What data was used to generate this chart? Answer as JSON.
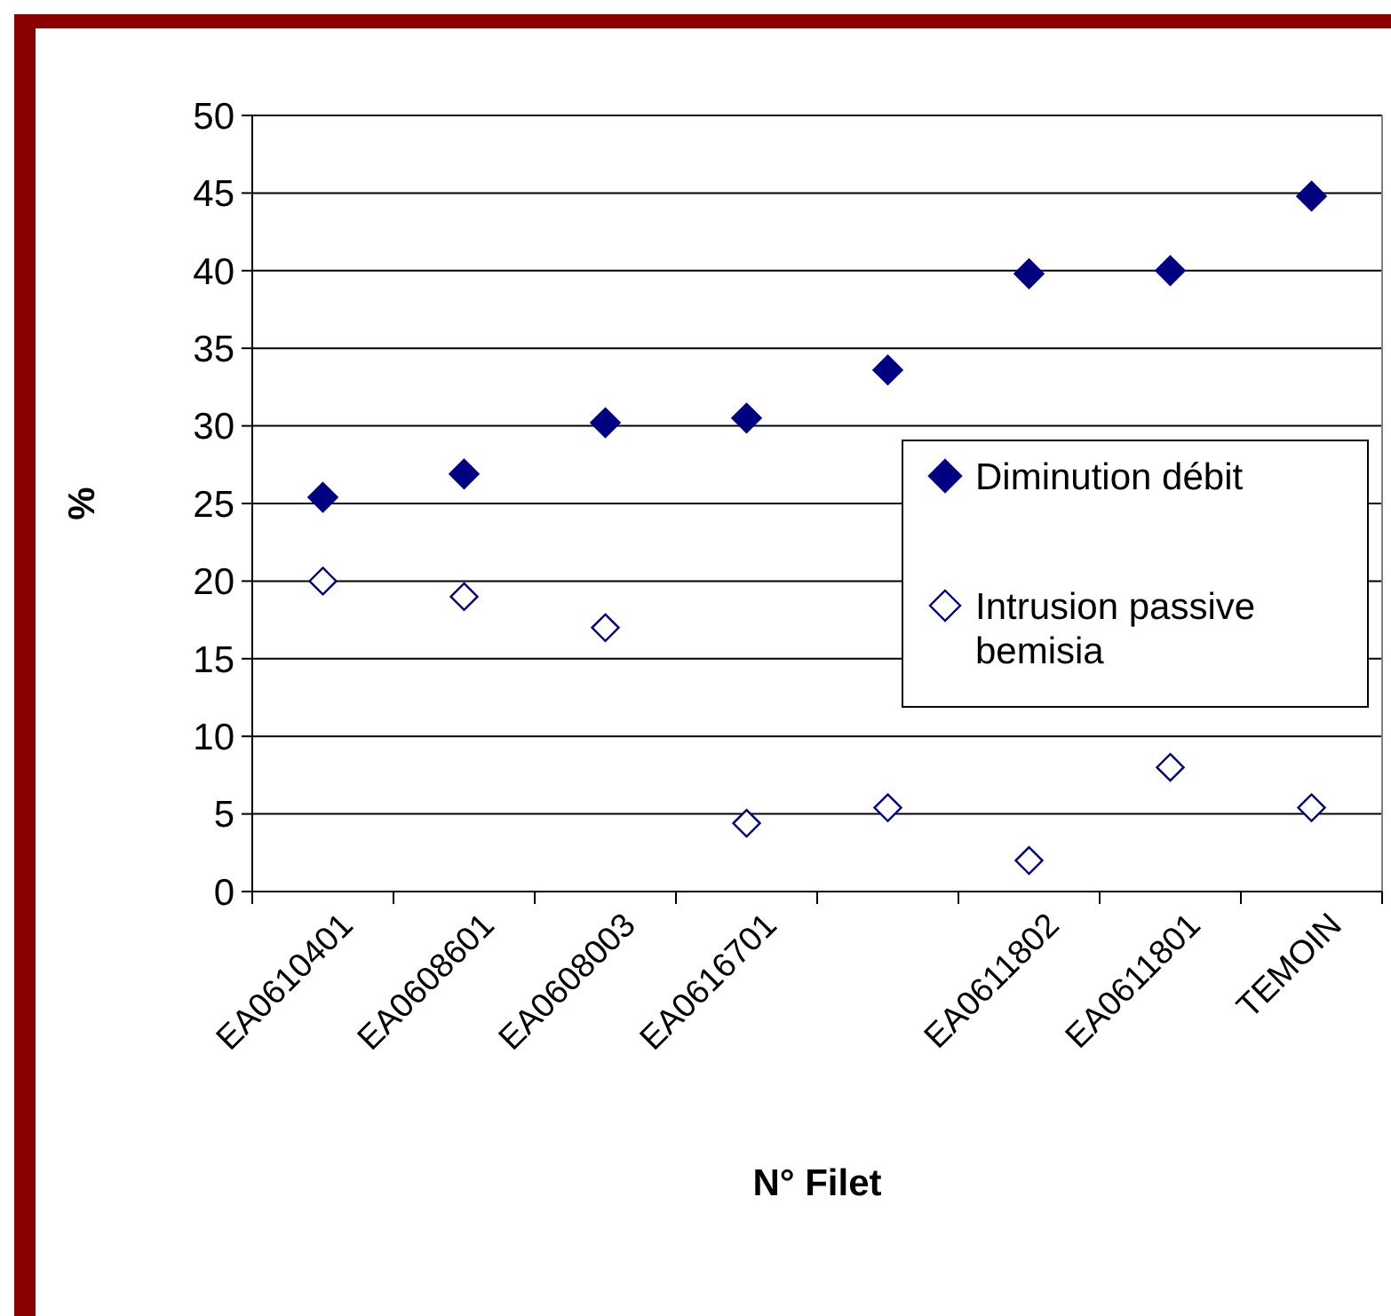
{
  "chart_data": {
    "type": "scatter",
    "xlabel": "N° Filet",
    "ylabel": "%",
    "categories": [
      "EA0610401",
      "EA0608601",
      "EA0608003",
      "EA0616701",
      null,
      "EA0611802",
      "EA0611801",
      "TEMOIN"
    ],
    "series": [
      {
        "name": "Diminution débit",
        "color": "#000080",
        "marker": "diamond",
        "values": [
          25.4,
          26.9,
          30.2,
          30.5,
          33.6,
          39.8,
          40,
          44.8
        ]
      },
      {
        "name": "Intrusion passive bemisia",
        "color": "#000080",
        "marker": "diamond",
        "values": [
          20,
          19,
          17,
          4.4,
          5.4,
          2,
          8,
          5.4
        ]
      }
    ],
    "ylim": [
      0,
      50
    ],
    "yticks": [
      0,
      5,
      10,
      15,
      20,
      25,
      30,
      35,
      40,
      45,
      50
    ],
    "grid": "y",
    "legend": "right"
  }
}
